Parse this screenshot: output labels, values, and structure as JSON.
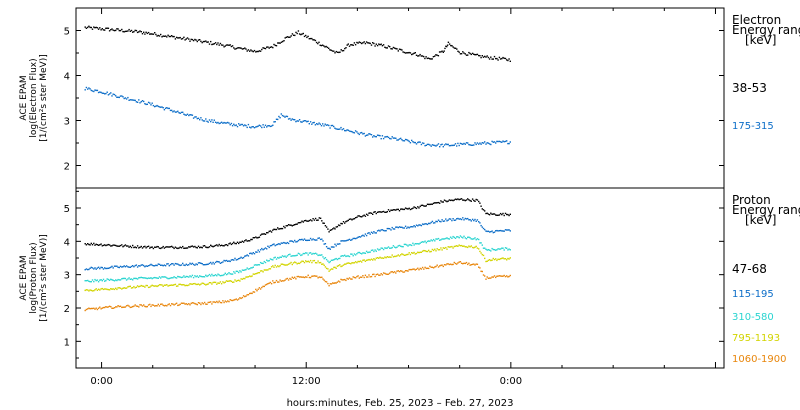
{
  "chart_data": [
    {
      "type": "scatter",
      "panel": "electron",
      "ylabel_lines": [
        "ACE EPAM",
        "log(Electron Flux)",
        "[1/(cm²s ster MeV)]"
      ],
      "ylim": [
        1.5,
        5.5
      ],
      "yticks": [
        2,
        3,
        4,
        5
      ],
      "xlim": [
        -1.5,
        36.5
      ],
      "legend": {
        "title_lines": [
          "Electron",
          "Energy ranges",
          "[keV]"
        ],
        "placement": "right"
      },
      "series": [
        {
          "name": "38-53",
          "color": "#000000",
          "points": [
            [
              -1,
              5.08
            ],
            [
              0,
              5.05
            ],
            [
              1,
              5.02
            ],
            [
              2,
              4.99
            ],
            [
              3,
              4.94
            ],
            [
              4,
              4.88
            ],
            [
              5,
              4.82
            ],
            [
              6,
              4.76
            ],
            [
              7,
              4.7
            ],
            [
              8,
              4.62
            ],
            [
              9,
              4.55
            ],
            [
              10,
              4.66
            ],
            [
              10.8,
              4.85
            ],
            [
              11.5,
              4.97
            ],
            [
              12.5,
              4.78
            ],
            [
              13.2,
              4.63
            ],
            [
              13.8,
              4.5
            ],
            [
              14.5,
              4.7
            ],
            [
              15.5,
              4.74
            ],
            [
              16.5,
              4.67
            ],
            [
              17.5,
              4.57
            ],
            [
              18.5,
              4.48
            ],
            [
              19.2,
              4.38
            ],
            [
              20,
              4.55
            ],
            [
              20.3,
              4.72
            ],
            [
              21,
              4.53
            ],
            [
              22,
              4.45
            ],
            [
              23,
              4.4
            ],
            [
              24,
              4.36
            ]
          ]
        },
        {
          "name": "175-315",
          "color": "#0d6ec8",
          "points": [
            [
              -1,
              3.73
            ],
            [
              0,
              3.65
            ],
            [
              1,
              3.55
            ],
            [
              2,
              3.46
            ],
            [
              3,
              3.36
            ],
            [
              4,
              3.25
            ],
            [
              5,
              3.13
            ],
            [
              6,
              3.03
            ],
            [
              7,
              2.96
            ],
            [
              8,
              2.91
            ],
            [
              9,
              2.88
            ],
            [
              10,
              2.92
            ],
            [
              10.5,
              3.14
            ],
            [
              11,
              3.05
            ],
            [
              12,
              2.98
            ],
            [
              13,
              2.91
            ],
            [
              14,
              2.83
            ],
            [
              15,
              2.74
            ],
            [
              16,
              2.66
            ],
            [
              17,
              2.62
            ],
            [
              18,
              2.55
            ],
            [
              19,
              2.48
            ],
            [
              20,
              2.46
            ],
            [
              21,
              2.48
            ],
            [
              22,
              2.5
            ],
            [
              23,
              2.52
            ],
            [
              24,
              2.54
            ]
          ]
        }
      ]
    },
    {
      "type": "scatter",
      "panel": "proton",
      "ylabel_lines": [
        "ACE EPAM",
        "log(Proton Flux)",
        "[1/(cm²s ster MeV)]"
      ],
      "ylim": [
        0.2,
        5.6
      ],
      "yticks": [
        1,
        2,
        3,
        4,
        5
      ],
      "xlim": [
        -1.5,
        36.5
      ],
      "legend": {
        "title_lines": [
          "Proton",
          "Energy ranges",
          "[keV]"
        ],
        "placement": "right"
      },
      "series": [
        {
          "name": "47-68",
          "color": "#000000",
          "points": [
            [
              -1,
              3.95
            ],
            [
              0,
              3.92
            ],
            [
              1,
              3.89
            ],
            [
              2,
              3.86
            ],
            [
              3,
              3.84
            ],
            [
              4,
              3.84
            ],
            [
              5,
              3.85
            ],
            [
              6,
              3.86
            ],
            [
              7,
              3.9
            ],
            [
              8,
              3.98
            ],
            [
              9,
              4.12
            ],
            [
              10,
              4.35
            ],
            [
              11,
              4.5
            ],
            [
              12,
              4.65
            ],
            [
              12.8,
              4.7
            ],
            [
              13.3,
              4.3
            ],
            [
              14,
              4.55
            ],
            [
              15,
              4.75
            ],
            [
              16,
              4.88
            ],
            [
              17,
              4.95
            ],
            [
              18,
              5.0
            ],
            [
              19,
              5.1
            ],
            [
              20,
              5.22
            ],
            [
              21,
              5.28
            ],
            [
              22,
              5.25
            ],
            [
              22.5,
              4.85
            ],
            [
              23,
              4.83
            ],
            [
              24,
              4.83
            ]
          ]
        },
        {
          "name": "115-195",
          "color": "#0d6ec8",
          "points": [
            [
              -1,
              3.2
            ],
            [
              0,
              3.22
            ],
            [
              1,
              3.25
            ],
            [
              2,
              3.28
            ],
            [
              3,
              3.3
            ],
            [
              4,
              3.32
            ],
            [
              5,
              3.33
            ],
            [
              6,
              3.35
            ],
            [
              7,
              3.4
            ],
            [
              8,
              3.5
            ],
            [
              9,
              3.7
            ],
            [
              10,
              3.9
            ],
            [
              11,
              4.0
            ],
            [
              12,
              4.08
            ],
            [
              12.8,
              4.1
            ],
            [
              13.3,
              3.8
            ],
            [
              14,
              4.0
            ],
            [
              15,
              4.15
            ],
            [
              16,
              4.3
            ],
            [
              17,
              4.4
            ],
            [
              18,
              4.45
            ],
            [
              19,
              4.55
            ],
            [
              20,
              4.65
            ],
            [
              21,
              4.7
            ],
            [
              22,
              4.65
            ],
            [
              22.5,
              4.3
            ],
            [
              23,
              4.32
            ],
            [
              24,
              4.35
            ]
          ]
        },
        {
          "name": "310-580",
          "color": "#2ad4d0",
          "points": [
            [
              -1,
              2.82
            ],
            [
              0,
              2.85
            ],
            [
              1,
              2.88
            ],
            [
              2,
              2.9
            ],
            [
              3,
              2.92
            ],
            [
              4,
              2.94
            ],
            [
              5,
              2.96
            ],
            [
              6,
              2.98
            ],
            [
              7,
              3.02
            ],
            [
              8,
              3.1
            ],
            [
              9,
              3.3
            ],
            [
              10,
              3.5
            ],
            [
              11,
              3.6
            ],
            [
              12,
              3.65
            ],
            [
              12.8,
              3.62
            ],
            [
              13.3,
              3.4
            ],
            [
              14,
              3.55
            ],
            [
              15,
              3.65
            ],
            [
              16,
              3.75
            ],
            [
              17,
              3.85
            ],
            [
              18,
              3.92
            ],
            [
              19,
              4.0
            ],
            [
              20,
              4.1
            ],
            [
              21,
              4.15
            ],
            [
              22,
              4.1
            ],
            [
              22.5,
              3.75
            ],
            [
              23,
              3.78
            ],
            [
              24,
              3.8
            ]
          ]
        },
        {
          "name": "795-1193",
          "color": "#d2d400",
          "points": [
            [
              -1,
              2.55
            ],
            [
              0,
              2.58
            ],
            [
              1,
              2.62
            ],
            [
              2,
              2.65
            ],
            [
              3,
              2.68
            ],
            [
              4,
              2.7
            ],
            [
              5,
              2.72
            ],
            [
              6,
              2.74
            ],
            [
              7,
              2.78
            ],
            [
              8,
              2.85
            ],
            [
              9,
              3.05
            ],
            [
              10,
              3.25
            ],
            [
              11,
              3.35
            ],
            [
              12,
              3.42
            ],
            [
              12.8,
              3.4
            ],
            [
              13.3,
              3.15
            ],
            [
              14,
              3.3
            ],
            [
              15,
              3.4
            ],
            [
              16,
              3.5
            ],
            [
              17,
              3.58
            ],
            [
              18,
              3.65
            ],
            [
              19,
              3.72
            ],
            [
              20,
              3.8
            ],
            [
              21,
              3.88
            ],
            [
              22,
              3.85
            ],
            [
              22.5,
              3.45
            ],
            [
              23,
              3.48
            ],
            [
              24,
              3.5
            ]
          ]
        },
        {
          "name": "1060-1900",
          "color": "#e8860c",
          "points": [
            [
              -1,
              1.97
            ],
            [
              0,
              2.02
            ],
            [
              1,
              2.06
            ],
            [
              2,
              2.08
            ],
            [
              3,
              2.1
            ],
            [
              4,
              2.12
            ],
            [
              5,
              2.14
            ],
            [
              6,
              2.16
            ],
            [
              7,
              2.2
            ],
            [
              8,
              2.28
            ],
            [
              9,
              2.55
            ],
            [
              10,
              2.8
            ],
            [
              11,
              2.9
            ],
            [
              12,
              2.97
            ],
            [
              12.8,
              2.95
            ],
            [
              13.3,
              2.7
            ],
            [
              14,
              2.85
            ],
            [
              15,
              2.95
            ],
            [
              16,
              3.0
            ],
            [
              17,
              3.08
            ],
            [
              18,
              3.15
            ],
            [
              19,
              3.22
            ],
            [
              20,
              3.3
            ],
            [
              21,
              3.38
            ],
            [
              22,
              3.3
            ],
            [
              22.5,
              2.92
            ],
            [
              23,
              2.95
            ],
            [
              24,
              2.97
            ]
          ]
        }
      ]
    }
  ],
  "x_axis": {
    "ticks": [
      {
        "x": 0,
        "label": "0:00"
      },
      {
        "x": 12,
        "label": "12:00"
      },
      {
        "x": 24,
        "label": "0:00"
      }
    ],
    "xlabel": "hours:minutes, Feb. 25, 2023 – Feb. 27, 2023"
  }
}
